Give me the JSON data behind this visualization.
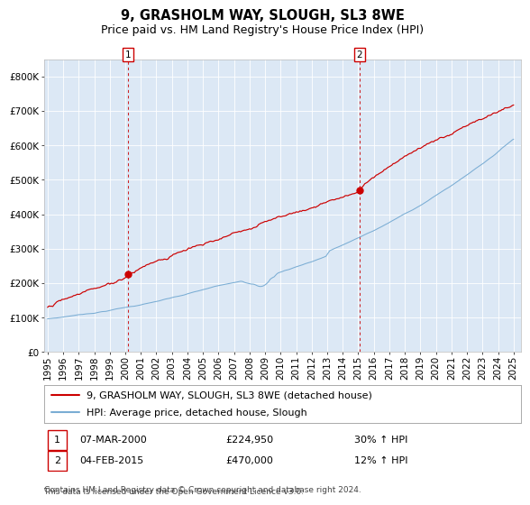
{
  "title": "9, GRASHOLM WAY, SLOUGH, SL3 8WE",
  "subtitle": "Price paid vs. HM Land Registry's House Price Index (HPI)",
  "ylim": [
    0,
    850000
  ],
  "yticks": [
    0,
    100000,
    200000,
    300000,
    400000,
    500000,
    600000,
    700000,
    800000
  ],
  "ytick_labels": [
    "£0",
    "£100K",
    "£200K",
    "£300K",
    "£400K",
    "£500K",
    "£600K",
    "£700K",
    "£800K"
  ],
  "background_color": "#ffffff",
  "plot_bg_color": "#dce8f5",
  "grid_color": "#ffffff",
  "red_line_color": "#cc0000",
  "blue_line_color": "#7aadd4",
  "marker_color": "#cc0000",
  "vline_color": "#cc0000",
  "annotation1": {
    "label": "1",
    "date": "07-MAR-2000",
    "price": "224,950",
    "pct": "30% ↑ HPI",
    "year": 2000.17,
    "value": 224950
  },
  "annotation2": {
    "label": "2",
    "date": "04-FEB-2015",
    "price": "470,000",
    "pct": "12% ↑ HPI",
    "year": 2015.09,
    "value": 470000
  },
  "legend_line1": "9, GRASHOLM WAY, SLOUGH, SL3 8WE (detached house)",
  "legend_line2": "HPI: Average price, detached house, Slough",
  "footnote1": "Contains HM Land Registry data © Crown copyright and database right 2024.",
  "footnote2": "This data is licensed under the Open Government Licence v3.0.",
  "title_fontsize": 10.5,
  "subtitle_fontsize": 9,
  "tick_fontsize": 7.5,
  "legend_fontsize": 8,
  "footnote_fontsize": 6.5
}
